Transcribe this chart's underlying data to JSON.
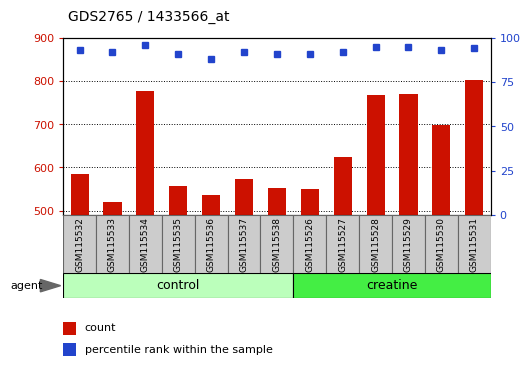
{
  "title": "GDS2765 / 1433566_at",
  "samples": [
    "GSM115532",
    "GSM115533",
    "GSM115534",
    "GSM115535",
    "GSM115536",
    "GSM115537",
    "GSM115538",
    "GSM115526",
    "GSM115527",
    "GSM115528",
    "GSM115529",
    "GSM115530",
    "GSM115531"
  ],
  "counts": [
    585,
    520,
    778,
    558,
    537,
    572,
    552,
    550,
    625,
    768,
    770,
    697,
    803
  ],
  "percentile_ranks": [
    93,
    92,
    96,
    91,
    88,
    92,
    91,
    91,
    92,
    95,
    95,
    93,
    94
  ],
  "groups": [
    {
      "label": "control",
      "start": 0,
      "end": 7,
      "color": "#bbffbb"
    },
    {
      "label": "creatine",
      "start": 7,
      "end": 13,
      "color": "#44ee44"
    }
  ],
  "ylim_left": [
    490,
    900
  ],
  "ylim_right": [
    0,
    100
  ],
  "yticks_left": [
    500,
    600,
    700,
    800,
    900
  ],
  "yticks_right": [
    0,
    25,
    50,
    75,
    100
  ],
  "bar_color": "#cc1100",
  "dot_color": "#2244cc",
  "dot_size": 6,
  "bar_width": 0.55,
  "background_color": "#ffffff",
  "grid_color": "#000000",
  "agent_label": "agent",
  "legend": [
    {
      "label": "count",
      "color": "#cc1100"
    },
    {
      "label": "percentile rank within the sample",
      "color": "#2244cc"
    }
  ],
  "label_box_color": "#cccccc",
  "label_box_edge": "#666666"
}
